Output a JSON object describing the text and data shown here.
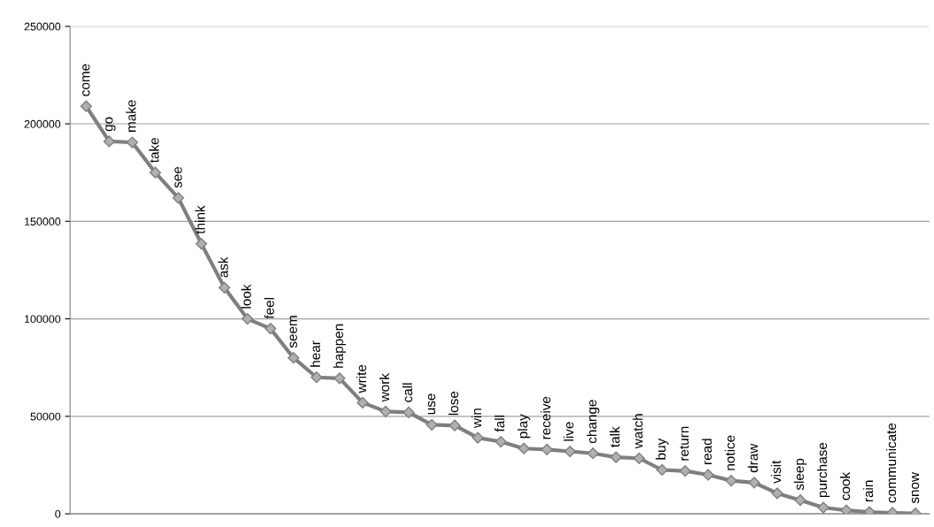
{
  "chart_data": {
    "type": "line",
    "categories": [
      "come",
      "go",
      "make",
      "take",
      "see",
      "think",
      "ask",
      "look",
      "feel",
      "seem",
      "hear",
      "happen",
      "write",
      "work",
      "call",
      "use",
      "lose",
      "win",
      "fall",
      "play",
      "receive",
      "live",
      "change",
      "talk",
      "watch",
      "buy",
      "return",
      "read",
      "notice",
      "draw",
      "visit",
      "sleep",
      "purchase",
      "cook",
      "rain",
      "communicate",
      "snow"
    ],
    "series": [
      {
        "color": "#7f7f7f",
        "values": [
          209000,
          191000,
          190500,
          175000,
          162000,
          138500,
          116000,
          100000,
          95000,
          80000,
          70000,
          69500,
          57000,
          52500,
          52000,
          45700,
          45300,
          39000,
          37000,
          33500,
          33000,
          32000,
          31000,
          29000,
          28500,
          22500,
          22000,
          20000,
          17000,
          16000,
          10500,
          7000,
          3200,
          1800,
          900,
          500,
          200
        ]
      }
    ],
    "ylim": [
      0,
      250000
    ],
    "yticks": [
      0,
      50000,
      100000,
      150000,
      200000,
      250000
    ],
    "grid": "y",
    "marker": "diamond",
    "line_style": "solid",
    "tick_labels": "y"
  }
}
